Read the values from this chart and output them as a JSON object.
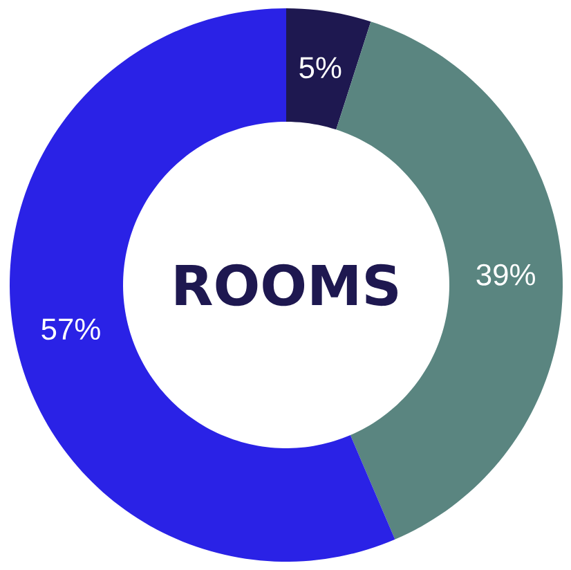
{
  "chart_data": {
    "type": "donut",
    "title": "ROOMS",
    "categories": [
      null,
      null,
      null
    ],
    "values": [
      5,
      39,
      57
    ],
    "colors": [
      "#1e1850",
      "#5a8580",
      "#2a22e6"
    ],
    "value_labels": [
      "5%",
      "39%",
      "57%"
    ]
  }
}
